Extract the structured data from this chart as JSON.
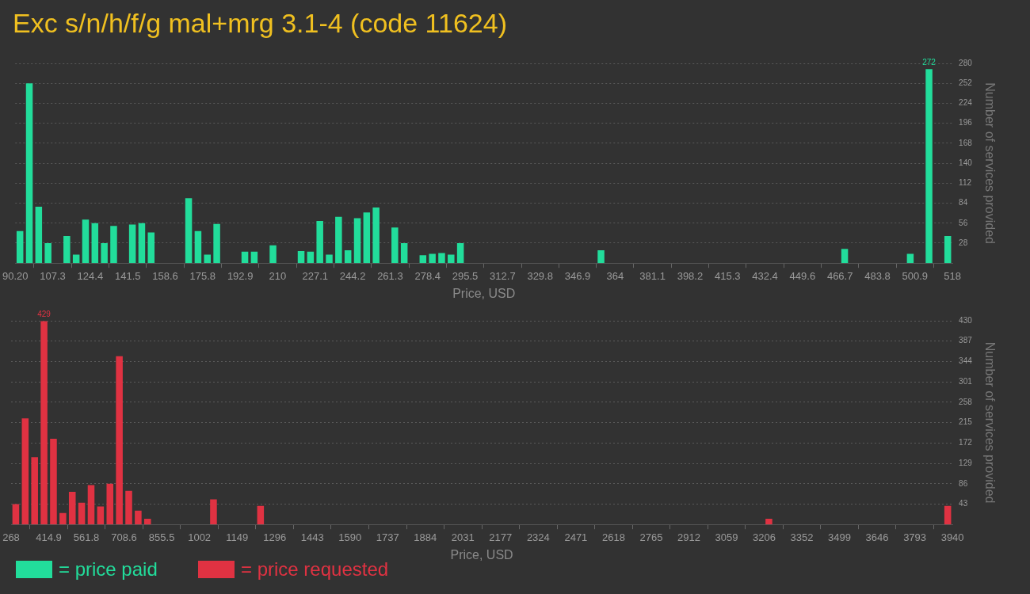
{
  "chart_data": [
    {
      "type": "histogram",
      "title": "Exc s/n/h/f/g mal+mrg 3.1-4 (code 11624)",
      "xlabel": "Price, USD",
      "ylabel": "Number of services provided",
      "bins": [
        90.2,
        94.48,
        98.76,
        103.03,
        107.31,
        111.59,
        115.87,
        120.15,
        124.42,
        128.7,
        132.98,
        137.26,
        141.54,
        145.81,
        150.09,
        154.37,
        158.65,
        162.93,
        167.2,
        171.48,
        175.76,
        180.04,
        184.32,
        188.59,
        192.87,
        197.15,
        201.43,
        205.71,
        209.98,
        214.26,
        218.54,
        222.82,
        227.1,
        231.37,
        235.65,
        239.93,
        244.21,
        248.49,
        252.76,
        257.04,
        261.32,
        265.6,
        269.88,
        274.15,
        278.43,
        282.71,
        286.99,
        291.27,
        295.54,
        299.82,
        304.1,
        308.38,
        312.66,
        316.93,
        321.21,
        325.49,
        329.77,
        334.05,
        338.32,
        342.6,
        346.88,
        351.16,
        355.44,
        359.71,
        363.99,
        368.27,
        372.55,
        376.83,
        381.1,
        385.38,
        389.66,
        393.94,
        398.22,
        402.49,
        406.77,
        411.05,
        415.33,
        419.61,
        423.88,
        428.16,
        432.44,
        436.72,
        441,
        445.27,
        449.55,
        453.83,
        458.11,
        462.39,
        466.66,
        470.94,
        475.22,
        479.5,
        483.78,
        488.05,
        492.33,
        496.61,
        500.89,
        505.17,
        509.44,
        513.72,
        518
      ],
      "series": [
        {
          "name": "= price paid",
          "color": "#22dd9b",
          "values": [
            45,
            252,
            79,
            28,
            0,
            38,
            12,
            61,
            56,
            28,
            52,
            0,
            54,
            56,
            43,
            0,
            0,
            0,
            91,
            45,
            12,
            55,
            0,
            0,
            16,
            16,
            0,
            25,
            0,
            0,
            17,
            16,
            59,
            12,
            65,
            18,
            63,
            71,
            78,
            0,
            50,
            28,
            0,
            11,
            13,
            14,
            12,
            28,
            0,
            0,
            0,
            0,
            0,
            0,
            0,
            0,
            0,
            0,
            0,
            0,
            0,
            0,
            18,
            0,
            0,
            0,
            0,
            0,
            0,
            0,
            0,
            0,
            0,
            0,
            0,
            0,
            0,
            0,
            0,
            0,
            0,
            0,
            0,
            0,
            0,
            0,
            0,
            0,
            20,
            0,
            0,
            0,
            0,
            0,
            0,
            13,
            0,
            272,
            0,
            38
          ],
          "value_labels": [
            null,
            null,
            null,
            null,
            null,
            null,
            null,
            null,
            null,
            null,
            null,
            null,
            null,
            null,
            null,
            null,
            null,
            null,
            null,
            null,
            null,
            null,
            null,
            null,
            null,
            null,
            null,
            null,
            null,
            null,
            null,
            null,
            null,
            null,
            null,
            null,
            null,
            null,
            null,
            null,
            null,
            null,
            null,
            null,
            null,
            null,
            null,
            null,
            null,
            null,
            null,
            null,
            null,
            null,
            null,
            null,
            null,
            null,
            null,
            null,
            null,
            null,
            null,
            null,
            null,
            null,
            null,
            null,
            null,
            null,
            null,
            null,
            null,
            null,
            null,
            null,
            null,
            null,
            null,
            null,
            null,
            null,
            null,
            null,
            null,
            null,
            null,
            null,
            null,
            null,
            null,
            null,
            null,
            null,
            null,
            null,
            null,
            "272",
            null,
            null
          ]
        }
      ],
      "xlim": [
        90.2,
        518
      ],
      "xticks": [
        {
          "value": 90.2,
          "label": "90.20"
        },
        {
          "value": 107.31,
          "label": "107.3"
        },
        {
          "value": 124.42,
          "label": "124.4"
        },
        {
          "value": 141.54,
          "label": "141.5"
        },
        {
          "value": 158.65,
          "label": "158.6"
        },
        {
          "value": 175.76,
          "label": "175.8"
        },
        {
          "value": 192.87,
          "label": "192.9"
        },
        {
          "value": 209.98,
          "label": "210"
        },
        {
          "value": 227.1,
          "label": "227.1"
        },
        {
          "value": 244.21,
          "label": "244.2"
        },
        {
          "value": 261.32,
          "label": "261.3"
        },
        {
          "value": 278.43,
          "label": "278.4"
        },
        {
          "value": 295.54,
          "label": "295.5"
        },
        {
          "value": 312.66,
          "label": "312.7"
        },
        {
          "value": 329.77,
          "label": "329.8"
        },
        {
          "value": 346.88,
          "label": "346.9"
        },
        {
          "value": 363.99,
          "label": "364"
        },
        {
          "value": 381.1,
          "label": "381.1"
        },
        {
          "value": 398.22,
          "label": "398.2"
        },
        {
          "value": 415.33,
          "label": "415.3"
        },
        {
          "value": 432.44,
          "label": "432.4"
        },
        {
          "value": 449.55,
          "label": "449.6"
        },
        {
          "value": 466.66,
          "label": "466.7"
        },
        {
          "value": 483.78,
          "label": "483.8"
        },
        {
          "value": 500.89,
          "label": "500.9"
        },
        518
      ],
      "ylim": [
        0,
        280
      ],
      "yticks": [
        28,
        56,
        84,
        112,
        140,
        168,
        196,
        224,
        252,
        280
      ],
      "grid": "y",
      "legend": "bottom left"
    },
    {
      "type": "histogram",
      "xlabel": "Price, USD",
      "ylabel": "Number of services provided",
      "bins": [
        268,
        304.72,
        341.44,
        378.16,
        414.88,
        451.6,
        488.32,
        525.04,
        561.76,
        598.48,
        635.2,
        671.92,
        708.64,
        745.36,
        782.08,
        818.8,
        855.52,
        892.24,
        928.96,
        965.68,
        1002.4,
        1039.12,
        1075.84,
        1112.56,
        1149.28,
        1186,
        1222.72,
        1259.44,
        1296.16,
        1332.88,
        1369.6,
        1406.32,
        1443.04,
        1479.76,
        1516.48,
        1553.2,
        1589.92,
        1626.64,
        1663.36,
        1700.08,
        1736.8,
        1773.52,
        1810.24,
        1846.96,
        1883.68,
        1920.4,
        1957.12,
        1993.84,
        2030.56,
        2067.28,
        2104,
        2140.72,
        2177.44,
        2214.16,
        2250.88,
        2287.6,
        2324.32,
        2361.04,
        2397.76,
        2434.48,
        2471.2,
        2507.92,
        2544.64,
        2581.36,
        2618.08,
        2654.8,
        2691.52,
        2728.24,
        2764.96,
        2801.68,
        2838.4,
        2875.12,
        2911.84,
        2948.56,
        2985.28,
        3022,
        3058.72,
        3095.44,
        3132.16,
        3168.88,
        3205.6,
        3242.32,
        3279.04,
        3315.76,
        3352.48,
        3389.2,
        3425.92,
        3462.64,
        3499.36,
        3536.08,
        3572.8,
        3609.52,
        3646.24,
        3682.96,
        3719.68,
        3756.4,
        3793.12,
        3829.84,
        3866.56,
        3903.28,
        3940
      ],
      "series": [
        {
          "name": "= price requested",
          "color": "#e03242",
          "values": [
            43,
            224,
            142,
            429,
            181,
            24,
            69,
            46,
            83,
            38,
            86,
            355,
            71,
            29,
            12,
            0,
            0,
            0,
            0,
            0,
            0,
            53,
            0,
            0,
            0,
            0,
            39,
            0,
            0,
            0,
            0,
            0,
            0,
            0,
            0,
            0,
            0,
            0,
            0,
            0,
            0,
            0,
            0,
            0,
            0,
            0,
            0,
            0,
            0,
            0,
            0,
            0,
            0,
            0,
            0,
            0,
            0,
            0,
            0,
            0,
            0,
            0,
            0,
            0,
            0,
            0,
            0,
            0,
            0,
            0,
            0,
            0,
            0,
            0,
            0,
            0,
            0,
            0,
            0,
            0,
            12,
            0,
            0,
            0,
            0,
            0,
            0,
            0,
            0,
            0,
            0,
            0,
            0,
            0,
            0,
            0,
            0,
            0,
            0,
            39
          ],
          "value_labels": [
            null,
            null,
            null,
            "429",
            null,
            null,
            null,
            null,
            null,
            null,
            null,
            null,
            null,
            null,
            null,
            null,
            null,
            null,
            null,
            null,
            null,
            null,
            null,
            null,
            null,
            null,
            null,
            null,
            null,
            null,
            null,
            null,
            null,
            null,
            null,
            null,
            null,
            null,
            null,
            null,
            null,
            null,
            null,
            null,
            null,
            null,
            null,
            null,
            null,
            null,
            null,
            null,
            null,
            null,
            null,
            null,
            null,
            null,
            null,
            null,
            null,
            null,
            null,
            null,
            null,
            null,
            null,
            null,
            null,
            null,
            null,
            null,
            null,
            null,
            null,
            null,
            null,
            null,
            null,
            null,
            null,
            null,
            null,
            null,
            null,
            null,
            null,
            null,
            null,
            null,
            null,
            null,
            null,
            null,
            null,
            null,
            null,
            null,
            null,
            null
          ]
        }
      ],
      "xlim": [
        268,
        3940
      ],
      "xticks": [
        268,
        {
          "value": 414.88,
          "label": "414.9"
        },
        {
          "value": 561.76,
          "label": "561.8"
        },
        {
          "value": 708.64,
          "label": "708.6"
        },
        {
          "value": 855.52,
          "label": "855.5"
        },
        {
          "value": 1002.4,
          "label": "1002"
        },
        {
          "value": 1149.28,
          "label": "1149"
        },
        {
          "value": 1296.16,
          "label": "1296"
        },
        {
          "value": 1443.04,
          "label": "1443"
        },
        {
          "value": 1589.92,
          "label": "1590"
        },
        {
          "value": 1736.8,
          "label": "1737"
        },
        {
          "value": 1883.68,
          "label": "1884"
        },
        {
          "value": 2030.56,
          "label": "2031"
        },
        {
          "value": 2177.44,
          "label": "2177"
        },
        {
          "value": 2324.32,
          "label": "2324"
        },
        {
          "value": 2471.2,
          "label": "2471"
        },
        {
          "value": 2618.08,
          "label": "2618"
        },
        {
          "value": 2764.96,
          "label": "2765"
        },
        {
          "value": 2911.84,
          "label": "2912"
        },
        {
          "value": 3058.72,
          "label": "3059"
        },
        {
          "value": 3205.6,
          "label": "3206"
        },
        {
          "value": 3352.48,
          "label": "3352"
        },
        {
          "value": 3499.36,
          "label": "3499"
        },
        {
          "value": 3646.24,
          "label": "3646"
        },
        {
          "value": 3793.12,
          "label": "3793"
        },
        3940
      ],
      "ylim": [
        0,
        430
      ],
      "yticks": [
        43,
        86,
        129,
        172,
        215,
        258,
        301,
        344,
        387,
        430
      ],
      "grid": "y",
      "legend": "bottom left"
    }
  ]
}
